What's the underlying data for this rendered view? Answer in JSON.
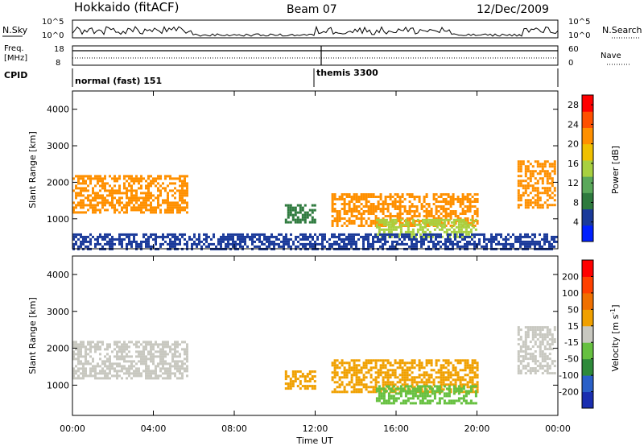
{
  "header": {
    "station": "Hokkaido (fitACF)",
    "beam": "Beam 07",
    "date": "12/Dec/2009"
  },
  "top_panels": {
    "nsky_label": "N.Sky",
    "nsky_ticks": [
      "10^5",
      "10^0"
    ],
    "nsearch_label": "N.Search",
    "nsearch_ticks": [
      "10^5",
      "10^0"
    ],
    "freq_label": "Freq.",
    "freq_unit": "[MHz]",
    "freq_ticks": [
      "18",
      "8"
    ],
    "nave_label": "Nave",
    "nave_ticks": [
      "60",
      "0"
    ],
    "cpid_label": "CPID",
    "modes": [
      {
        "name": "normal (fast) 151",
        "start_ut": 0.0
      },
      {
        "name": "themis 3300",
        "start_ut": 12.3
      }
    ]
  },
  "colors": {
    "power_scale": [
      "#0020ff",
      "#1a3a9a",
      "#2e7a3e",
      "#5aa85a",
      "#a8d040",
      "#f0c000",
      "#ff9000",
      "#ff5000",
      "#ff0000"
    ],
    "velocity_scale": [
      "#1a2eb0",
      "#2a60c8",
      "#2e8a3a",
      "#66c040",
      "#c8c8c0",
      "#f0a000",
      "#f07000",
      "#ff4000",
      "#ff0000"
    ],
    "background_scatter": "#c8c8c0"
  },
  "chart_data": [
    {
      "type": "heatmap",
      "title": "",
      "xlabel": "",
      "ylabel": "Slant Range [km]",
      "xlim": [
        0,
        24
      ],
      "ylim": [
        180,
        4500
      ],
      "yticks": [
        "1000",
        "2000",
        "3000",
        "4000"
      ],
      "colorbar": {
        "label": "Power [dB]",
        "ticks": [
          "4",
          "8",
          "12",
          "16",
          "20",
          "24",
          "28"
        ],
        "range": [
          0,
          30
        ]
      },
      "echo_regions": [
        {
          "t0": 0.0,
          "t1": 5.7,
          "r0": 1200,
          "r1": 2200,
          "value": 22
        },
        {
          "t0": 10.5,
          "t1": 12.0,
          "r0": 900,
          "r1": 1400,
          "value": 8
        },
        {
          "t0": 12.8,
          "t1": 20.0,
          "r0": 800,
          "r1": 1700,
          "value": 20
        },
        {
          "t0": 15.0,
          "t1": 20.0,
          "r0": 500,
          "r1": 1000,
          "value": 14
        },
        {
          "t0": 22.0,
          "t1": 23.8,
          "r0": 1300,
          "r1": 2600,
          "value": 22
        },
        {
          "t0": 0.0,
          "t1": 24.0,
          "r0": 180,
          "r1": 600,
          "value": 6
        }
      ]
    },
    {
      "type": "heatmap",
      "title": "",
      "xlabel": "Time UT",
      "ylabel": "Slant Range [km]",
      "xlim": [
        0,
        24
      ],
      "ylim": [
        180,
        4500
      ],
      "xticks": [
        "00:00",
        "04:00",
        "08:00",
        "12:00",
        "16:00",
        "20:00",
        "00:00"
      ],
      "yticks": [
        "1000",
        "2000",
        "3000",
        "4000"
      ],
      "colorbar": {
        "label": "Velocity [m s^-1]",
        "ticks": [
          "200",
          "100",
          "50",
          "15",
          "-15",
          "-50",
          "-100",
          "-200"
        ],
        "range": [
          -250,
          250
        ]
      },
      "echo_regions": [
        {
          "t0": 0.0,
          "t1": 5.7,
          "r0": 1200,
          "r1": 2200,
          "value": 0
        },
        {
          "t0": 10.5,
          "t1": 12.0,
          "r0": 900,
          "r1": 1400,
          "value": 40
        },
        {
          "t0": 12.8,
          "t1": 20.0,
          "r0": 800,
          "r1": 1700,
          "value": 40
        },
        {
          "t0": 15.0,
          "t1": 20.0,
          "r0": 500,
          "r1": 1000,
          "value": -60
        },
        {
          "t0": 22.0,
          "t1": 23.8,
          "r0": 1300,
          "r1": 2600,
          "value": 0
        }
      ]
    }
  ]
}
